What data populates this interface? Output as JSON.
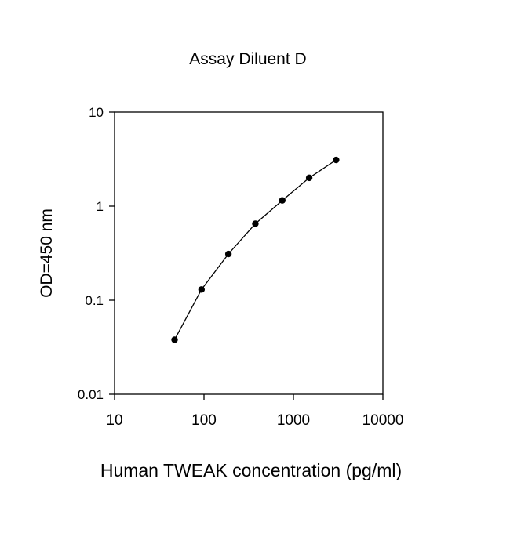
{
  "chart_data": {
    "type": "scatter",
    "title": "Assay Diluent D",
    "xlabel": "Human TWEAK concentration (pg/ml)",
    "ylabel": "OD=450 nm",
    "x_scale": "log",
    "y_scale": "log",
    "xlim": [
      10,
      10000
    ],
    "ylim": [
      0.01,
      10
    ],
    "x_ticks": [
      10,
      100,
      1000,
      10000
    ],
    "x_tick_labels": [
      "10",
      "100",
      "1000",
      "10000"
    ],
    "y_ticks": [
      0.01,
      0.1,
      1,
      10
    ],
    "y_tick_labels": [
      "0.01",
      "0.1",
      "1",
      "10"
    ],
    "grid": false,
    "series": [
      {
        "x": [
          46.9,
          93.8,
          187.5,
          375,
          750,
          1500,
          3000
        ],
        "y": [
          0.038,
          0.13,
          0.31,
          0.65,
          1.15,
          2.0,
          3.1
        ],
        "color": "#000000",
        "connected": true
      }
    ]
  }
}
